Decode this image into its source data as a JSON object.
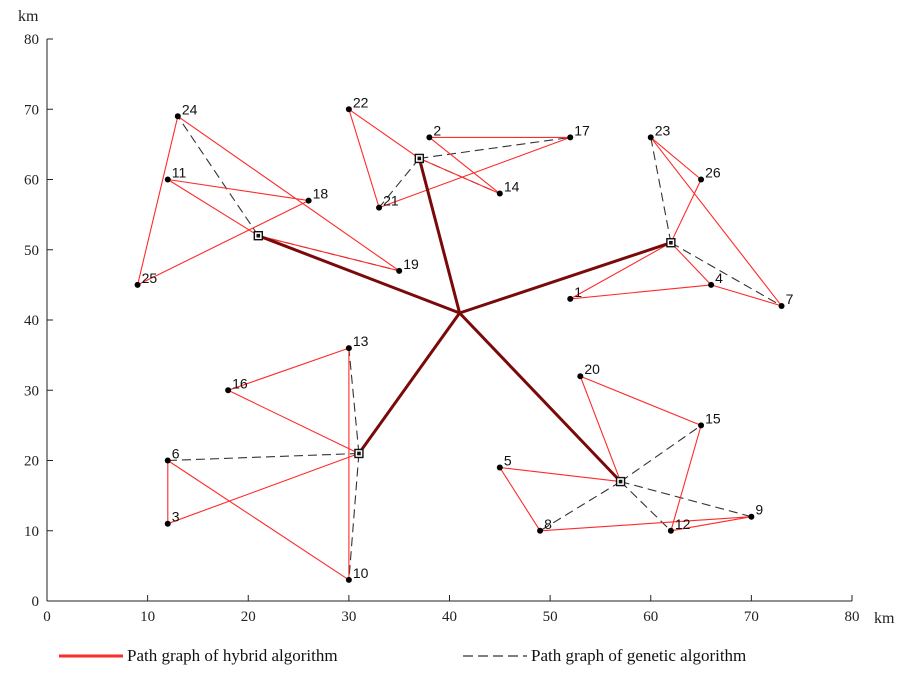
{
  "chart_data": {
    "type": "scatter",
    "x_unit_label": "km",
    "y_unit_label": "km",
    "xlim": [
      0,
      80
    ],
    "ylim": [
      0,
      80
    ],
    "xticks": [
      0,
      10,
      20,
      30,
      40,
      50,
      60,
      70,
      80
    ],
    "yticks": [
      0,
      10,
      20,
      30,
      40,
      50,
      60,
      70,
      80
    ],
    "grid": false,
    "legend_position": "bottom",
    "colors": {
      "hybrid": "#ff2a2a",
      "genetic": "#333333",
      "trunk": "#7a0a0a",
      "points": "#000000"
    },
    "depot": {
      "x": 41,
      "y": 41
    },
    "centers": [
      {
        "id": "A",
        "x": 21,
        "y": 52
      },
      {
        "id": "B",
        "x": 37,
        "y": 63
      },
      {
        "id": "C",
        "x": 62,
        "y": 51
      },
      {
        "id": "D",
        "x": 31,
        "y": 21
      },
      {
        "id": "E",
        "x": 57,
        "y": 17
      }
    ],
    "points": [
      {
        "label": "1",
        "x": 52,
        "y": 43
      },
      {
        "label": "2",
        "x": 38,
        "y": 66
      },
      {
        "label": "3",
        "x": 12,
        "y": 11
      },
      {
        "label": "4",
        "x": 66,
        "y": 45
      },
      {
        "label": "5",
        "x": 45,
        "y": 19
      },
      {
        "label": "6",
        "x": 12,
        "y": 20
      },
      {
        "label": "7",
        "x": 73,
        "y": 42
      },
      {
        "label": "8",
        "x": 49,
        "y": 10
      },
      {
        "label": "9",
        "x": 70,
        "y": 12
      },
      {
        "label": "10",
        "x": 30,
        "y": 3
      },
      {
        "label": "11",
        "x": 12,
        "y": 60
      },
      {
        "label": "12",
        "x": 62,
        "y": 10
      },
      {
        "label": "13",
        "x": 30,
        "y": 36
      },
      {
        "label": "14",
        "x": 45,
        "y": 58
      },
      {
        "label": "15",
        "x": 65,
        "y": 25
      },
      {
        "label": "16",
        "x": 18,
        "y": 30
      },
      {
        "label": "17",
        "x": 52,
        "y": 66
      },
      {
        "label": "18",
        "x": 26,
        "y": 57
      },
      {
        "label": "19",
        "x": 35,
        "y": 47
      },
      {
        "label": "20",
        "x": 53,
        "y": 32
      },
      {
        "label": "21",
        "x": 33,
        "y": 56
      },
      {
        "label": "22",
        "x": 30,
        "y": 70
      },
      {
        "label": "23",
        "x": 60,
        "y": 66
      },
      {
        "label": "24",
        "x": 13,
        "y": 69
      },
      {
        "label": "25",
        "x": 9,
        "y": 45
      },
      {
        "label": "26",
        "x": 65,
        "y": 60
      }
    ],
    "trunk_routes": [
      [
        "depot",
        "A"
      ],
      [
        "depot",
        "B"
      ],
      [
        "depot",
        "C"
      ],
      [
        "depot",
        "D"
      ],
      [
        "depot",
        "E"
      ]
    ],
    "series": [
      {
        "name": "Path graph of hybrid algorithm",
        "style": "solid",
        "routes": [
          [
            "A",
            "19",
            "24",
            "25",
            "18",
            "11",
            "A"
          ],
          [
            "B",
            "22",
            "21",
            "17",
            "2",
            "14",
            "B"
          ],
          [
            "C",
            "4",
            "1",
            "C",
            "26",
            "23",
            "7",
            "4"
          ],
          [
            "D",
            "16",
            "13",
            "10",
            "6",
            "3",
            "D"
          ],
          [
            "E",
            "20",
            "15",
            "12",
            "9",
            "8",
            "5",
            "E"
          ]
        ]
      },
      {
        "name": "Path graph of genetic algorithm",
        "style": "dashed",
        "routes": [
          [
            "A",
            "24"
          ],
          [
            "A",
            "19"
          ],
          [
            "B",
            "21"
          ],
          [
            "B",
            "17"
          ],
          [
            "B",
            "14"
          ],
          [
            "C",
            "23"
          ],
          [
            "C",
            "7"
          ],
          [
            "D",
            "6"
          ],
          [
            "D",
            "13"
          ],
          [
            "D",
            "10"
          ],
          [
            "E",
            "15"
          ],
          [
            "E",
            "9"
          ],
          [
            "E",
            "12"
          ],
          [
            "E",
            "8"
          ]
        ]
      }
    ]
  }
}
